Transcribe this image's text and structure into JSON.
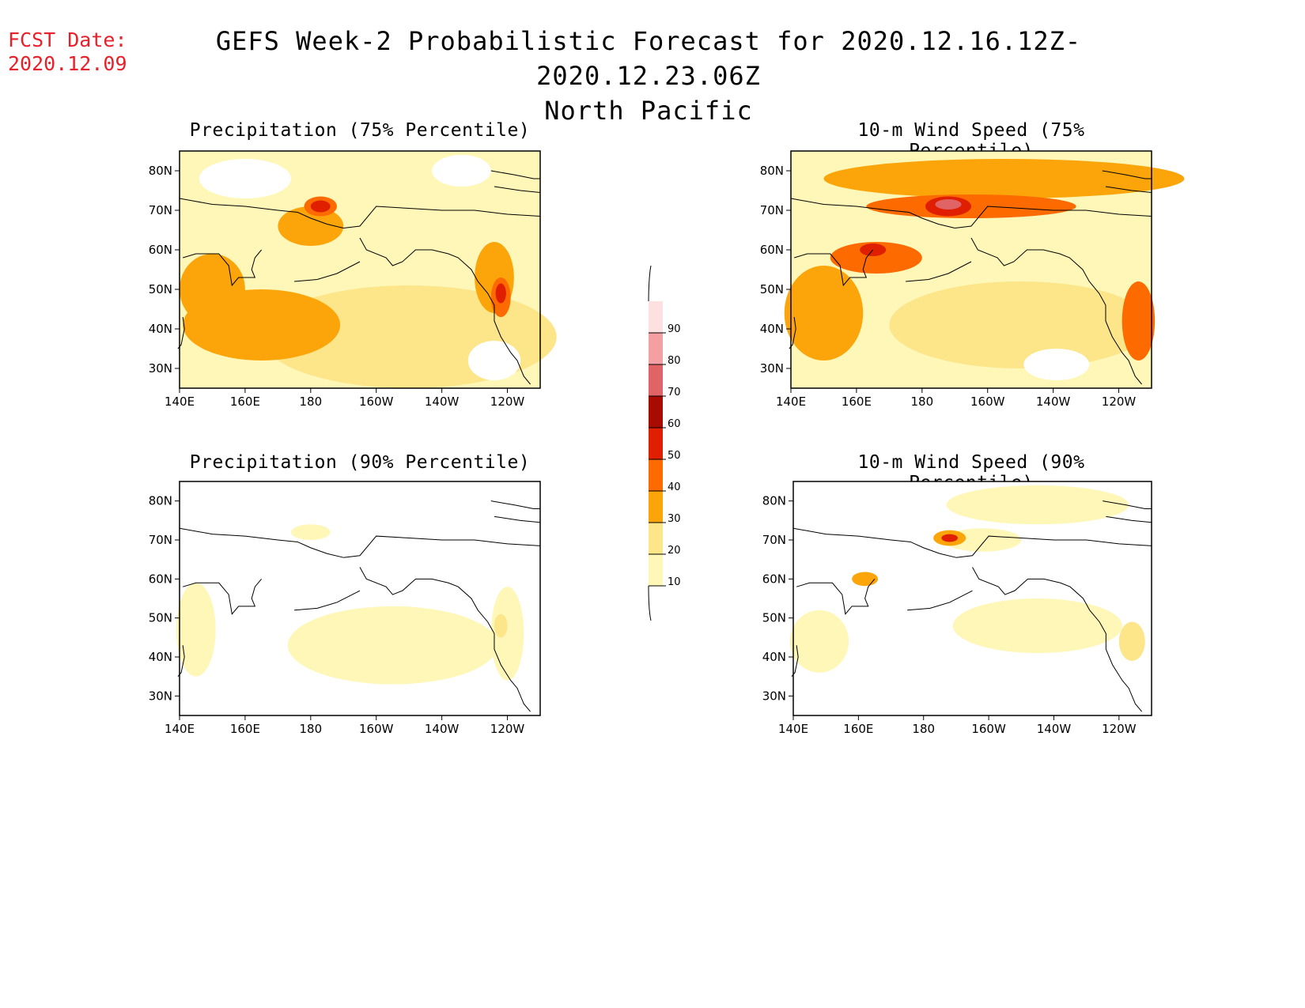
{
  "header": {
    "fcst_label": "FCST Date:",
    "fcst_date": "2020.12.09",
    "title": "GEFS Week-2 Probabilistic Forecast for 2020.12.16.12Z-2020.12.23.06Z",
    "subtitle": "North Pacific"
  },
  "axes": {
    "lat_labels": [
      "80N",
      "70N",
      "60N",
      "50N",
      "40N",
      "30N"
    ],
    "lon_labels": [
      "140E",
      "160E",
      "180",
      "160W",
      "140W",
      "120W"
    ]
  },
  "panels": [
    {
      "title": "Precipitation (75% Percentile)",
      "intensity": "high"
    },
    {
      "title": "10-m Wind Speed (75% Percentile)",
      "intensity": "high"
    },
    {
      "title": "Precipitation (90% Percentile)",
      "intensity": "low"
    },
    {
      "title": "10-m Wind Speed (90% Percentile)",
      "intensity": "low"
    }
  ],
  "colorbar": {
    "levels": [
      "10",
      "20",
      "30",
      "40",
      "50",
      "60",
      "70",
      "80",
      "90"
    ],
    "colors": [
      "#fff7b8",
      "#fde58a",
      "#fca50a",
      "#fc6a00",
      "#e01e00",
      "#a80c00",
      "#e06466",
      "#f4a0a2",
      "#fde0e0"
    ]
  }
}
